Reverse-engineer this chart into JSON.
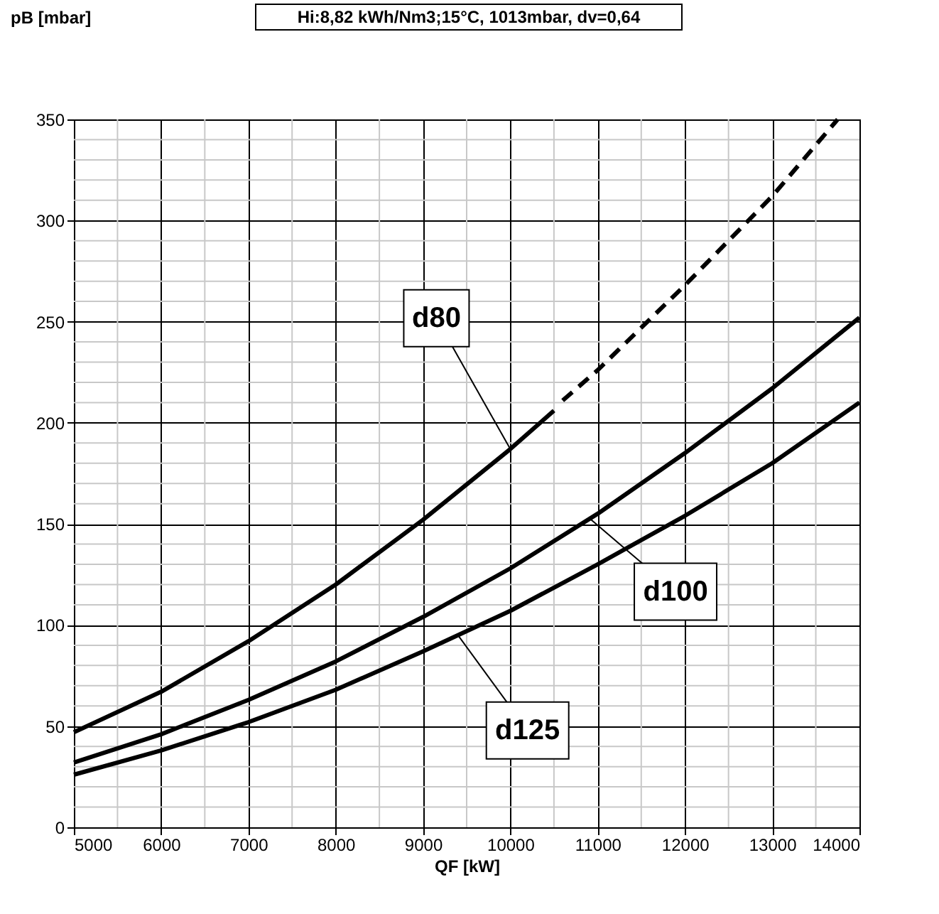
{
  "chart_data": {
    "type": "line",
    "title": "Hi:8,82 kWh/Nm3;15°C,  1013mbar, dv=0,64",
    "xlabel": "QF [kW]",
    "ylabel": "pB [mbar]",
    "xlim": [
      5000,
      14000
    ],
    "xticks": [
      5000,
      6000,
      7000,
      8000,
      9000,
      10000,
      11000,
      12000,
      13000,
      14000
    ],
    "ylim": [
      0,
      350
    ],
    "yticks": [
      0,
      50,
      100,
      150,
      200,
      250,
      300,
      350
    ],
    "grid": true,
    "marker": "none",
    "series": [
      {
        "color": "#000000",
        "line_style": "solid",
        "x": [
          5000,
          6000,
          7000,
          8000,
          9000,
          10000,
          10500
        ],
        "values": [
          47,
          67,
          92,
          120,
          152,
          187,
          206
        ]
      },
      {
        "color": "#000000",
        "line_style": "dashed",
        "x": [
          10600,
          11000,
          12000,
          13000,
          13750
        ],
        "values": [
          211,
          226,
          268,
          312,
          350
        ]
      },
      {
        "color": "#000000",
        "line_style": "solid",
        "x": [
          5000,
          6000,
          7000,
          8000,
          9000,
          10000,
          11000,
          12000,
          13000,
          14000
        ],
        "values": [
          32,
          46,
          63,
          82,
          104,
          128,
          155,
          185,
          217,
          252
        ]
      },
      {
        "color": "#000000",
        "line_style": "solid",
        "x": [
          5000,
          6000,
          7000,
          8000,
          9000,
          10000,
          11000,
          12000,
          13000,
          14000
        ],
        "values": [
          26,
          38,
          52,
          68,
          87,
          107,
          130,
          154,
          180,
          210
        ]
      }
    ],
    "annotations": [
      {
        "text": "d80",
        "x": 10000,
        "y": 187
      },
      {
        "text": "d100",
        "x": 10900,
        "y": 153
      },
      {
        "text": "d125",
        "x": 9400,
        "y": 95
      }
    ]
  }
}
